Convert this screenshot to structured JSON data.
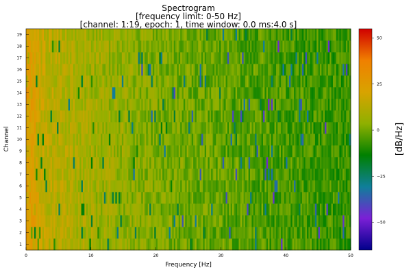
{
  "chart_data": {
    "type": "heatmap",
    "title_lines": [
      "Spectrogram",
      "[frequency limit: 0-50 Hz]",
      "[channel: 1:19, epoch: 1, time window: 0.0 ms:4.0 s]"
    ],
    "xlabel": "Frequency [Hz]",
    "ylabel": "Channel",
    "colorbar_label": "[dB/Hz]",
    "xlim": [
      0,
      50
    ],
    "x_ticks": [
      "0",
      "10",
      "20",
      "30",
      "40",
      "50"
    ],
    "x_tick_values": [
      0,
      10,
      20,
      30,
      40,
      50
    ],
    "channels": [
      "1",
      "2",
      "3",
      "4",
      "5",
      "6",
      "7",
      "8",
      "9",
      "10",
      "11",
      "12",
      "13",
      "14",
      "15",
      "16",
      "17",
      "18",
      "19"
    ],
    "colorbar_ticks": [
      "50",
      "25",
      "0",
      "−25",
      "−50"
    ],
    "colorbar_tick_values": [
      50,
      25,
      0,
      -25,
      -50
    ],
    "clim": [
      -65,
      55
    ],
    "colormap": [
      "#00008b",
      "#7b1fd6",
      "#0f7f9a",
      "#008000",
      "#8fb000",
      "#d8a300",
      "#f08000",
      "#d00000"
    ],
    "n_freq_bins": 200,
    "approx_levels_db": [
      {
        "freq_hz": 0,
        "db": 24
      },
      {
        "freq_hz": 1,
        "db": 22
      },
      {
        "freq_hz": 3,
        "db": 14
      },
      {
        "freq_hz": 10,
        "db": 8
      },
      {
        "freq_hz": 20,
        "db": 2
      },
      {
        "freq_hz": 30,
        "db": -2
      },
      {
        "freq_hz": 40,
        "db": -5
      },
      {
        "freq_hz": 50,
        "db": -7
      }
    ],
    "grid": false
  }
}
